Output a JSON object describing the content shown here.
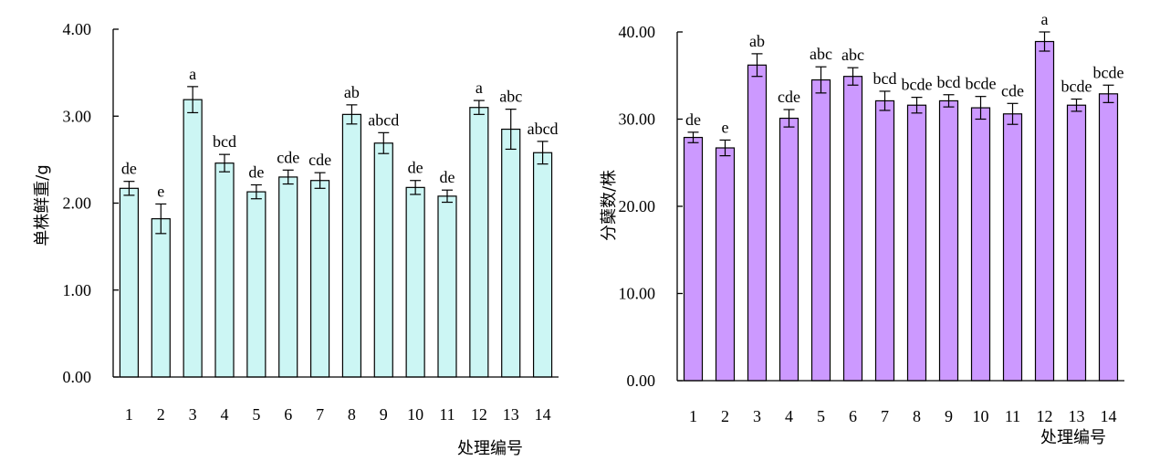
{
  "chart_data": [
    {
      "type": "bar",
      "categories": [
        "1",
        "2",
        "3",
        "4",
        "5",
        "6",
        "7",
        "8",
        "9",
        "10",
        "11",
        "12",
        "13",
        "14"
      ],
      "values": [
        2.17,
        1.82,
        3.19,
        2.46,
        2.13,
        2.3,
        2.26,
        3.02,
        2.69,
        2.18,
        2.08,
        3.1,
        2.85,
        2.58
      ],
      "errors": [
        0.08,
        0.17,
        0.15,
        0.1,
        0.08,
        0.08,
        0.09,
        0.11,
        0.12,
        0.08,
        0.07,
        0.08,
        0.23,
        0.13
      ],
      "significance": [
        "de",
        "e",
        "a",
        "bcd",
        "de",
        "cde",
        "cde",
        "ab",
        "abcd",
        "de",
        "de",
        "a",
        "abc",
        "abcd"
      ],
      "ylim": [
        0,
        4
      ],
      "yticks": [
        "0.00",
        "1.00",
        "2.00",
        "3.00",
        "4.00"
      ],
      "ylabel": "单株鲜重/g",
      "xlabel": "处理编号",
      "bar_color": "#ccf6f4",
      "grid": false
    },
    {
      "type": "bar",
      "categories": [
        "1",
        "2",
        "3",
        "4",
        "5",
        "6",
        "7",
        "8",
        "9",
        "10",
        "11",
        "12",
        "13",
        "14"
      ],
      "values": [
        27.9,
        26.7,
        36.2,
        30.1,
        34.5,
        34.9,
        32.1,
        31.6,
        32.1,
        31.3,
        30.6,
        38.9,
        31.6,
        32.9
      ],
      "errors": [
        0.6,
        0.9,
        1.3,
        1.0,
        1.5,
        1.0,
        1.1,
        0.9,
        0.7,
        1.3,
        1.2,
        1.1,
        0.7,
        1.0
      ],
      "significance": [
        "de",
        "e",
        "ab",
        "cde",
        "abc",
        "abc",
        "bcd",
        "bcde",
        "bcd",
        "bcde",
        "cde",
        "a",
        "bcde",
        "bcde"
      ],
      "ylim": [
        0,
        40
      ],
      "yticks": [
        "0.00",
        "10.00",
        "20.00",
        "30.00",
        "40.00"
      ],
      "ylabel": "分蘖数/株",
      "xlabel": "处理编号",
      "bar_color": "#cc99ff",
      "grid": false
    }
  ]
}
